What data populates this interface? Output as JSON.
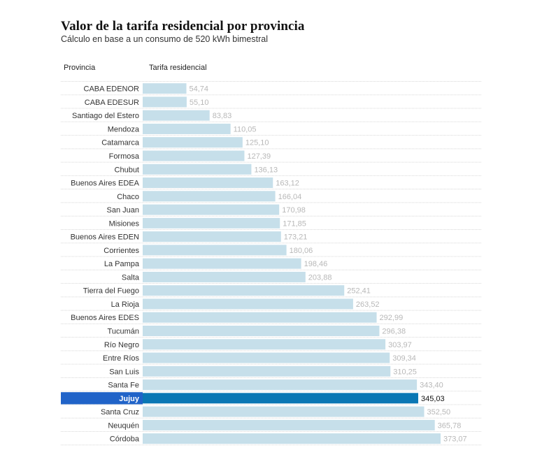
{
  "header": {
    "title": "Valor de la tarifa residencial por provincia",
    "subtitle": "Cálculo en base a un consumo de 520 kWh bimestral"
  },
  "columns": {
    "province": "Provincia",
    "rate": "Tarifa residencial"
  },
  "colors": {
    "bar": "#c6dfea",
    "highlight_bar": "#0a77b4",
    "highlight_label_bg": "#2063c8",
    "separator": "#d8d8d8"
  },
  "chart_data": {
    "type": "bar",
    "orientation": "horizontal",
    "title": "Valor de la tarifa residencial por provincia",
    "subtitle": "Cálculo en base a un consumo de 520 kWh bimestral",
    "xlabel": "Tarifa residencial",
    "ylabel": "Provincia",
    "grid": false,
    "highlight": "Jujuy",
    "categories": [
      "CABA EDENOR",
      "CABA EDESUR",
      "Santiago del Estero",
      "Mendoza",
      "Catamarca",
      "Formosa",
      "Chubut",
      "Buenos Aires EDEA",
      "Chaco",
      "San Juan",
      "Misiones",
      "Buenos Aires EDEN",
      "Corrientes",
      "La Pampa",
      "Salta",
      "Tierra del Fuego",
      "La Rioja",
      "Buenos Aires EDES",
      "Tucumán",
      "Río Negro",
      "Entre Ríos",
      "San Luis",
      "Santa Fe",
      "Jujuy",
      "Santa Cruz",
      "Neuquén",
      "Córdoba"
    ],
    "values": [
      54.74,
      55.1,
      83.83,
      110.05,
      125.1,
      127.39,
      136.13,
      163.12,
      166.04,
      170.98,
      171.85,
      173.21,
      180.06,
      198.46,
      203.88,
      252.41,
      263.52,
      292.99,
      296.38,
      303.97,
      309.34,
      310.25,
      343.4,
      345.03,
      352.5,
      365.78,
      373.07
    ],
    "value_labels": [
      "54,74",
      "55,10",
      "83,83",
      "110,05",
      "125,10",
      "127,39",
      "136,13",
      "163,12",
      "166,04",
      "170,98",
      "171,85",
      "173,21",
      "180,06",
      "198,46",
      "203,88",
      "252,41",
      "263,52",
      "292,99",
      "296,38",
      "303,97",
      "309,34",
      "310,25",
      "343,40",
      "345,03",
      "352,50",
      "365,78",
      "373,07"
    ],
    "xlim": [
      0,
      373.07
    ]
  }
}
